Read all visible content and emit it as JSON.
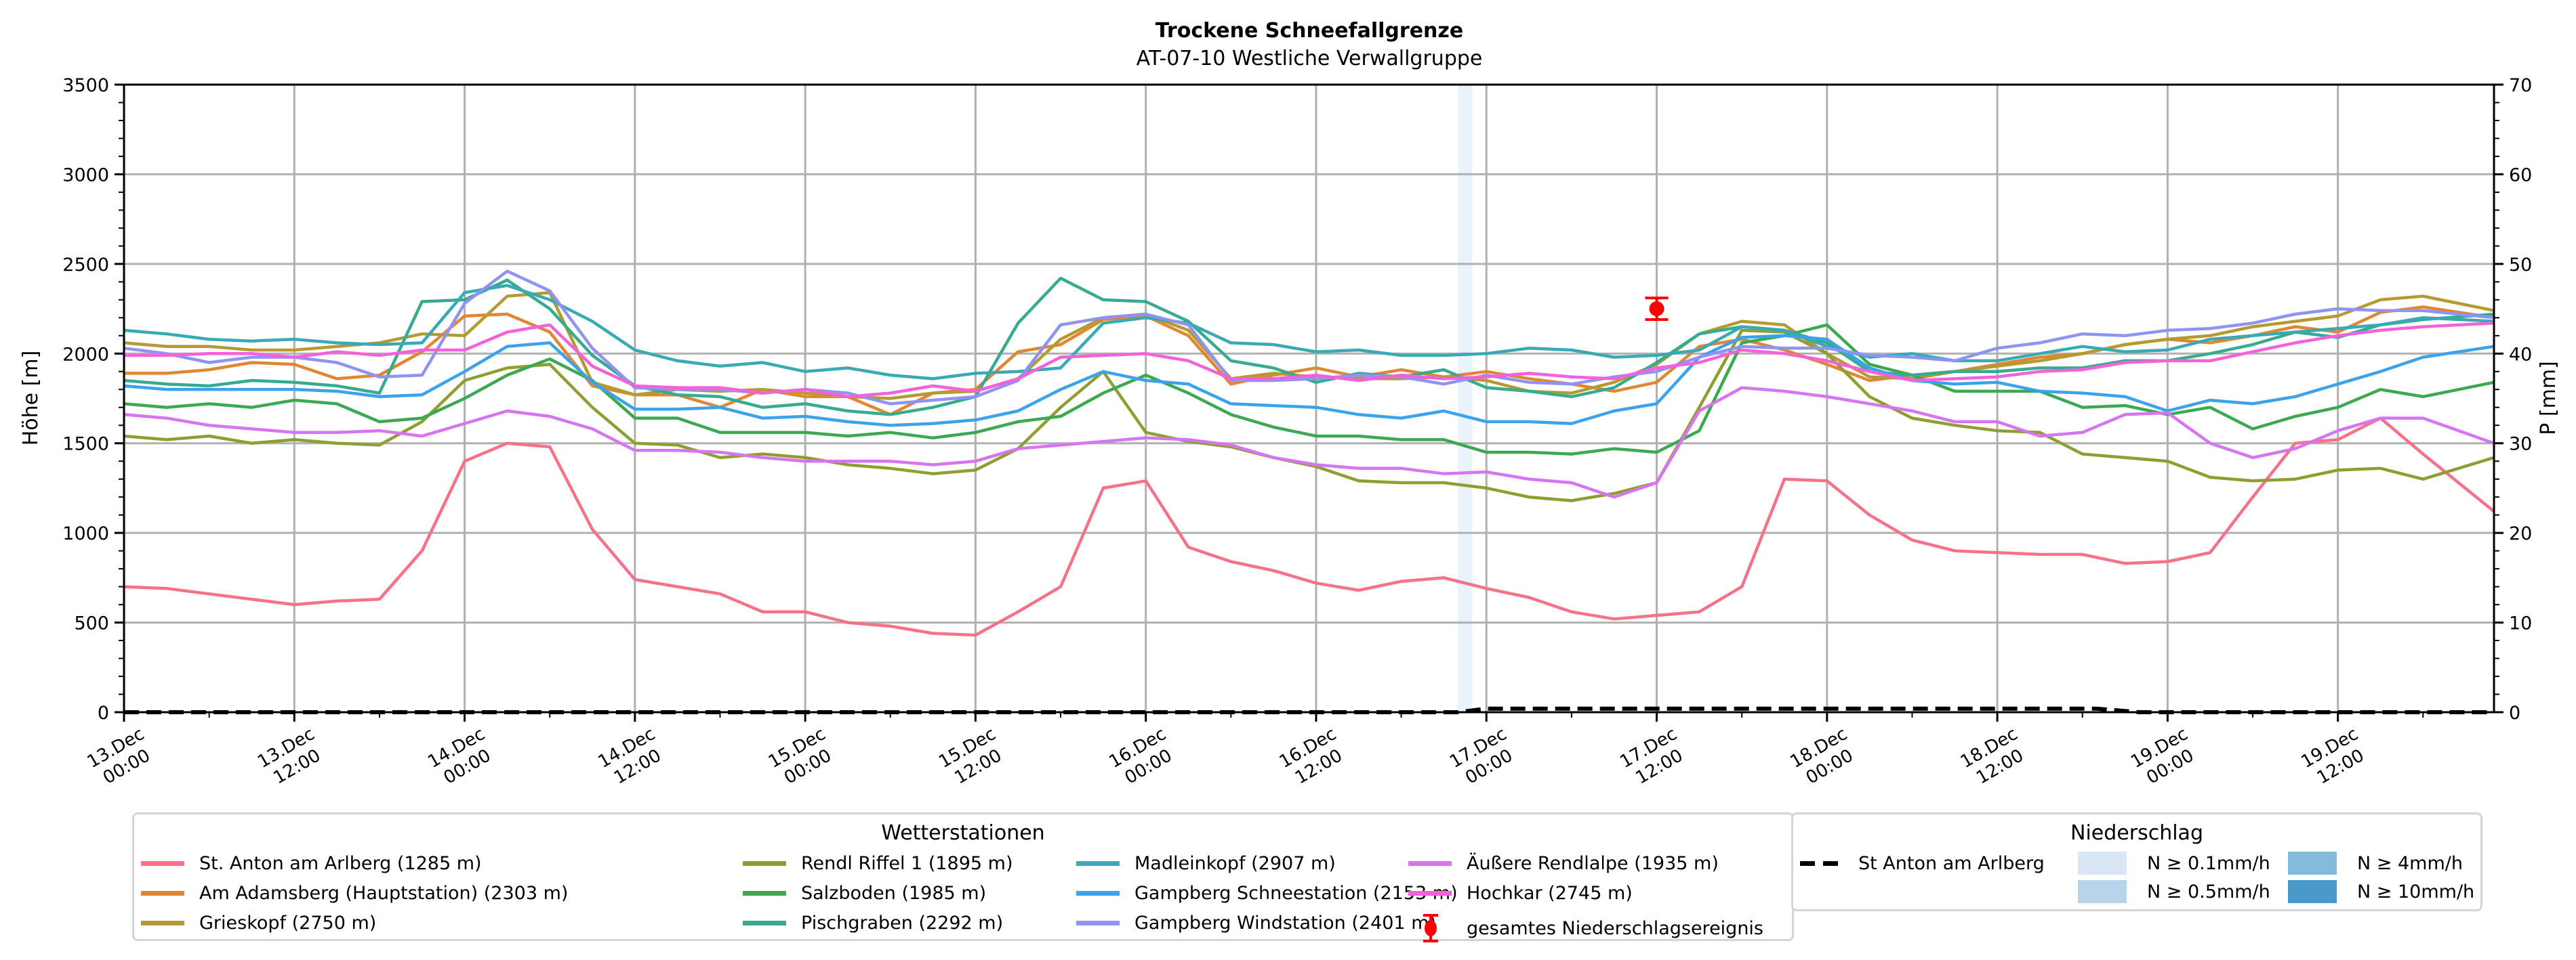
{
  "chart_data": {
    "type": "line",
    "title": "Trockene Schneefallgrenze",
    "subtitle": "AT-07-10 Westliche Verwallgruppe",
    "ylabel": "Höhe [m]",
    "ylabel_right": "P [mm]",
    "ylim": [
      0,
      3500
    ],
    "ylim_right": [
      0,
      70
    ],
    "yticks": [
      "0",
      "500",
      "1000",
      "1500",
      "2000",
      "2500",
      "3000",
      "3500"
    ],
    "yticks_right": [
      "0",
      "10",
      "20",
      "30",
      "40",
      "50",
      "60",
      "70"
    ],
    "grid": true,
    "x_unit": "hours since 13.Dec 00:00",
    "x_step_hours": 3,
    "x_end_hours": 167,
    "xticks": [
      {
        "h": 0,
        "label": "13.Dec\n00:00"
      },
      {
        "h": 12,
        "label": "13.Dec\n12:00"
      },
      {
        "h": 24,
        "label": "14.Dec\n00:00"
      },
      {
        "h": 36,
        "label": "14.Dec\n12:00"
      },
      {
        "h": 48,
        "label": "15.Dec\n00:00"
      },
      {
        "h": 60,
        "label": "15.Dec\n12:00"
      },
      {
        "h": 72,
        "label": "16.Dec\n00:00"
      },
      {
        "h": 84,
        "label": "16.Dec\n12:00"
      },
      {
        "h": 96,
        "label": "17.Dec\n00:00"
      },
      {
        "h": 108,
        "label": "17.Dec\n12:00"
      },
      {
        "h": 120,
        "label": "18.Dec\n00:00"
      },
      {
        "h": 132,
        "label": "18.Dec\n12:00"
      },
      {
        "h": 144,
        "label": "19.Dec\n00:00"
      },
      {
        "h": 156,
        "label": "19.Dec\n12:00"
      }
    ],
    "series": [
      {
        "name": "St. Anton am Arlberg (1285 m)",
        "color": "#f77189",
        "values": [
          700,
          690,
          660,
          630,
          600,
          620,
          630,
          900,
          1400,
          1500,
          1480,
          1020,
          740,
          700,
          660,
          560,
          560,
          500,
          480,
          440,
          430,
          560,
          700,
          1250,
          1290,
          920,
          840,
          790,
          720,
          680,
          730,
          750,
          690,
          640,
          560,
          520,
          540,
          560,
          700,
          1300,
          1290,
          1100,
          960,
          900,
          890,
          880,
          880,
          830,
          840,
          890,
          1200,
          1500,
          1520,
          1640,
          1440,
          1120
        ]
      },
      {
        "name": "Am Adamsberg (Hauptstation) (2303 m)",
        "color": "#e18632",
        "values": [
          1890,
          1890,
          1910,
          1950,
          1940,
          1860,
          1880,
          2010,
          2210,
          2220,
          2120,
          1820,
          1770,
          1770,
          1700,
          1800,
          1760,
          1760,
          1660,
          1780,
          1800,
          2010,
          2050,
          2190,
          2210,
          2100,
          1830,
          1880,
          1920,
          1870,
          1910,
          1870,
          1900,
          1860,
          1830,
          1790,
          1840,
          2040,
          2080,
          2020,
          1940,
          1850,
          1880,
          1900,
          1940,
          1980,
          2000,
          2050,
          2080,
          2060,
          2100,
          2150,
          2120,
          2230,
          2260,
          2200
        ]
      },
      {
        "name": "Grieskopf (2750 m)",
        "color": "#b59a32",
        "values": [
          2060,
          2040,
          2040,
          2020,
          2020,
          2040,
          2060,
          2110,
          2100,
          2320,
          2340,
          1840,
          1770,
          1800,
          1790,
          1800,
          1780,
          1760,
          1750,
          1780,
          1790,
          1860,
          2080,
          2200,
          2220,
          2130,
          1860,
          1890,
          1870,
          1860,
          1860,
          1870,
          1850,
          1790,
          1780,
          1840,
          1940,
          2110,
          2180,
          2160,
          2000,
          1870,
          1860,
          1900,
          1930,
          1960,
          2000,
          2050,
          2080,
          2100,
          2150,
          2180,
          2210,
          2300,
          2320,
          2240
        ]
      },
      {
        "name": "Rendl Riffel 1 (1895 m)",
        "color": "#8f9e31",
        "values": [
          1540,
          1520,
          1540,
          1500,
          1520,
          1500,
          1490,
          1620,
          1850,
          1920,
          1940,
          1700,
          1500,
          1490,
          1420,
          1440,
          1420,
          1380,
          1360,
          1330,
          1350,
          1470,
          1700,
          1900,
          1560,
          1510,
          1480,
          1420,
          1370,
          1290,
          1280,
          1280,
          1250,
          1200,
          1180,
          1220,
          1280,
          1700,
          2130,
          2120,
          2000,
          1760,
          1640,
          1600,
          1570,
          1560,
          1440,
          1420,
          1400,
          1310,
          1290,
          1300,
          1350,
          1360,
          1300,
          1420
        ]
      },
      {
        "name": "Salzboden (1985 m)",
        "color": "#3ca951",
        "values": [
          1720,
          1700,
          1720,
          1700,
          1740,
          1720,
          1620,
          1640,
          1750,
          1880,
          1970,
          1850,
          1640,
          1640,
          1560,
          1560,
          1560,
          1540,
          1560,
          1530,
          1560,
          1620,
          1650,
          1780,
          1880,
          1780,
          1660,
          1590,
          1540,
          1540,
          1520,
          1520,
          1450,
          1450,
          1440,
          1470,
          1450,
          1570,
          2060,
          2100,
          2160,
          1940,
          1880,
          1790,
          1790,
          1790,
          1700,
          1710,
          1660,
          1700,
          1580,
          1650,
          1700,
          1800,
          1760,
          1840
        ]
      },
      {
        "name": "Pischgraben (2292 m)",
        "color": "#36ab8f",
        "values": [
          1850,
          1830,
          1820,
          1850,
          1840,
          1820,
          1780,
          2290,
          2300,
          2410,
          2250,
          1990,
          1820,
          1770,
          1760,
          1700,
          1720,
          1680,
          1660,
          1700,
          1760,
          2170,
          2420,
          2300,
          2290,
          2180,
          1960,
          1920,
          1840,
          1890,
          1870,
          1910,
          1810,
          1790,
          1760,
          1810,
          1950,
          2110,
          2150,
          2130,
          2060,
          1900,
          1880,
          1900,
          1900,
          1920,
          1920,
          1960,
          1960,
          2000,
          2050,
          2120,
          2090,
          2160,
          2190,
          2220
        ]
      },
      {
        "name": "Madleinkopf (2907 m)",
        "color": "#38a9b5",
        "values": [
          2130,
          2110,
          2080,
          2070,
          2080,
          2060,
          2050,
          2060,
          2340,
          2380,
          2300,
          2180,
          2020,
          1960,
          1930,
          1950,
          1900,
          1920,
          1880,
          1860,
          1890,
          1900,
          1920,
          2170,
          2200,
          2170,
          2060,
          2050,
          2010,
          2020,
          1990,
          1990,
          2000,
          2030,
          2020,
          1980,
          1990,
          2020,
          2150,
          2130,
          2040,
          1980,
          2000,
          1960,
          1960,
          2000,
          2040,
          2010,
          2020,
          2080,
          2100,
          2120,
          2140,
          2160,
          2200,
          2180
        ]
      },
      {
        "name": "Gampberg Schneestation (2153 m)",
        "color": "#3ba3ec",
        "values": [
          1820,
          1800,
          1800,
          1800,
          1800,
          1790,
          1760,
          1770,
          1900,
          2040,
          2060,
          1840,
          1690,
          1690,
          1700,
          1640,
          1650,
          1620,
          1600,
          1610,
          1630,
          1680,
          1800,
          1900,
          1850,
          1830,
          1720,
          1710,
          1700,
          1660,
          1640,
          1680,
          1620,
          1620,
          1610,
          1680,
          1720,
          1980,
          2090,
          2100,
          2080,
          1920,
          1850,
          1830,
          1840,
          1790,
          1780,
          1760,
          1680,
          1740,
          1720,
          1760,
          1830,
          1900,
          1980,
          2040
        ]
      },
      {
        "name": "Gampberg Windstation (2401 m)",
        "color": "#8f93f2",
        "values": [
          2030,
          2000,
          1950,
          1980,
          1980,
          1950,
          1870,
          1880,
          2280,
          2460,
          2350,
          2030,
          1810,
          1800,
          1800,
          1780,
          1800,
          1780,
          1720,
          1740,
          1760,
          1850,
          2160,
          2200,
          2220,
          2160,
          1850,
          1850,
          1860,
          1880,
          1870,
          1830,
          1880,
          1840,
          1830,
          1870,
          1900,
          1980,
          2040,
          2030,
          2030,
          1990,
          1980,
          1960,
          2030,
          2060,
          2110,
          2100,
          2130,
          2140,
          2170,
          2220,
          2250,
          2240,
          2240,
          2200
        ]
      },
      {
        "name": "Äußere Rendlalpe (1935 m)",
        "color": "#d774f2",
        "values": [
          1660,
          1640,
          1600,
          1580,
          1560,
          1560,
          1570,
          1540,
          1610,
          1680,
          1650,
          1580,
          1460,
          1460,
          1450,
          1420,
          1400,
          1400,
          1400,
          1380,
          1400,
          1470,
          1490,
          1510,
          1530,
          1520,
          1490,
          1420,
          1380,
          1360,
          1360,
          1330,
          1340,
          1300,
          1280,
          1200,
          1280,
          1680,
          1810,
          1790,
          1760,
          1720,
          1680,
          1620,
          1620,
          1540,
          1560,
          1660,
          1670,
          1500,
          1420,
          1470,
          1570,
          1640,
          1640,
          1500
        ]
      },
      {
        "name": "Hochkar (2745 m)",
        "color": "#f561dd",
        "values": [
          1990,
          1990,
          2000,
          2000,
          1980,
          2010,
          1990,
          2020,
          2020,
          2120,
          2160,
          1930,
          1820,
          1810,
          1810,
          1780,
          1800,
          1760,
          1780,
          1820,
          1790,
          1860,
          1980,
          1990,
          2000,
          1960,
          1860,
          1860,
          1880,
          1850,
          1880,
          1860,
          1870,
          1890,
          1870,
          1860,
          1920,
          1950,
          2020,
          2000,
          1960,
          1900,
          1850,
          1860,
          1870,
          1900,
          1910,
          1950,
          1960,
          1960,
          2010,
          2060,
          2100,
          2130,
          2150,
          2170
        ]
      }
    ],
    "precip_series": {
      "name": "St Anton am Arlberg",
      "unit": "mm",
      "x_hours": [
        0,
        94,
        96,
        139,
        142,
        167
      ],
      "values": [
        0,
        0,
        0.4,
        0.4,
        0,
        0
      ]
    },
    "precip_shading": [
      {
        "start_h": 94,
        "end_h": 95,
        "level": "N ≥ 0.1mm/h"
      }
    ],
    "event_marker": {
      "label": "gesamtes Niederschlagsereignis",
      "h": 108,
      "value": 2250,
      "err_low": 2190,
      "err_high": 2310,
      "color": "#ff0000"
    },
    "legend_stations": {
      "title": "Wetterstationen",
      "placement": "bottom-center-left"
    },
    "legend_precip": {
      "title": "Niederschlag",
      "placement": "bottom-right",
      "line_label": "St Anton am Arlberg",
      "patches": [
        {
          "label": "N ≥ 0.1mm/h",
          "color": "#d9e7f5"
        },
        {
          "label": "N ≥ 0.5mm/h",
          "color": "#b7d4ea"
        },
        {
          "label": "N ≥ 4mm/h",
          "color": "#83bbdb"
        },
        {
          "label": "N ≥ 10mm/h",
          "color": "#4b98ca"
        }
      ]
    }
  }
}
